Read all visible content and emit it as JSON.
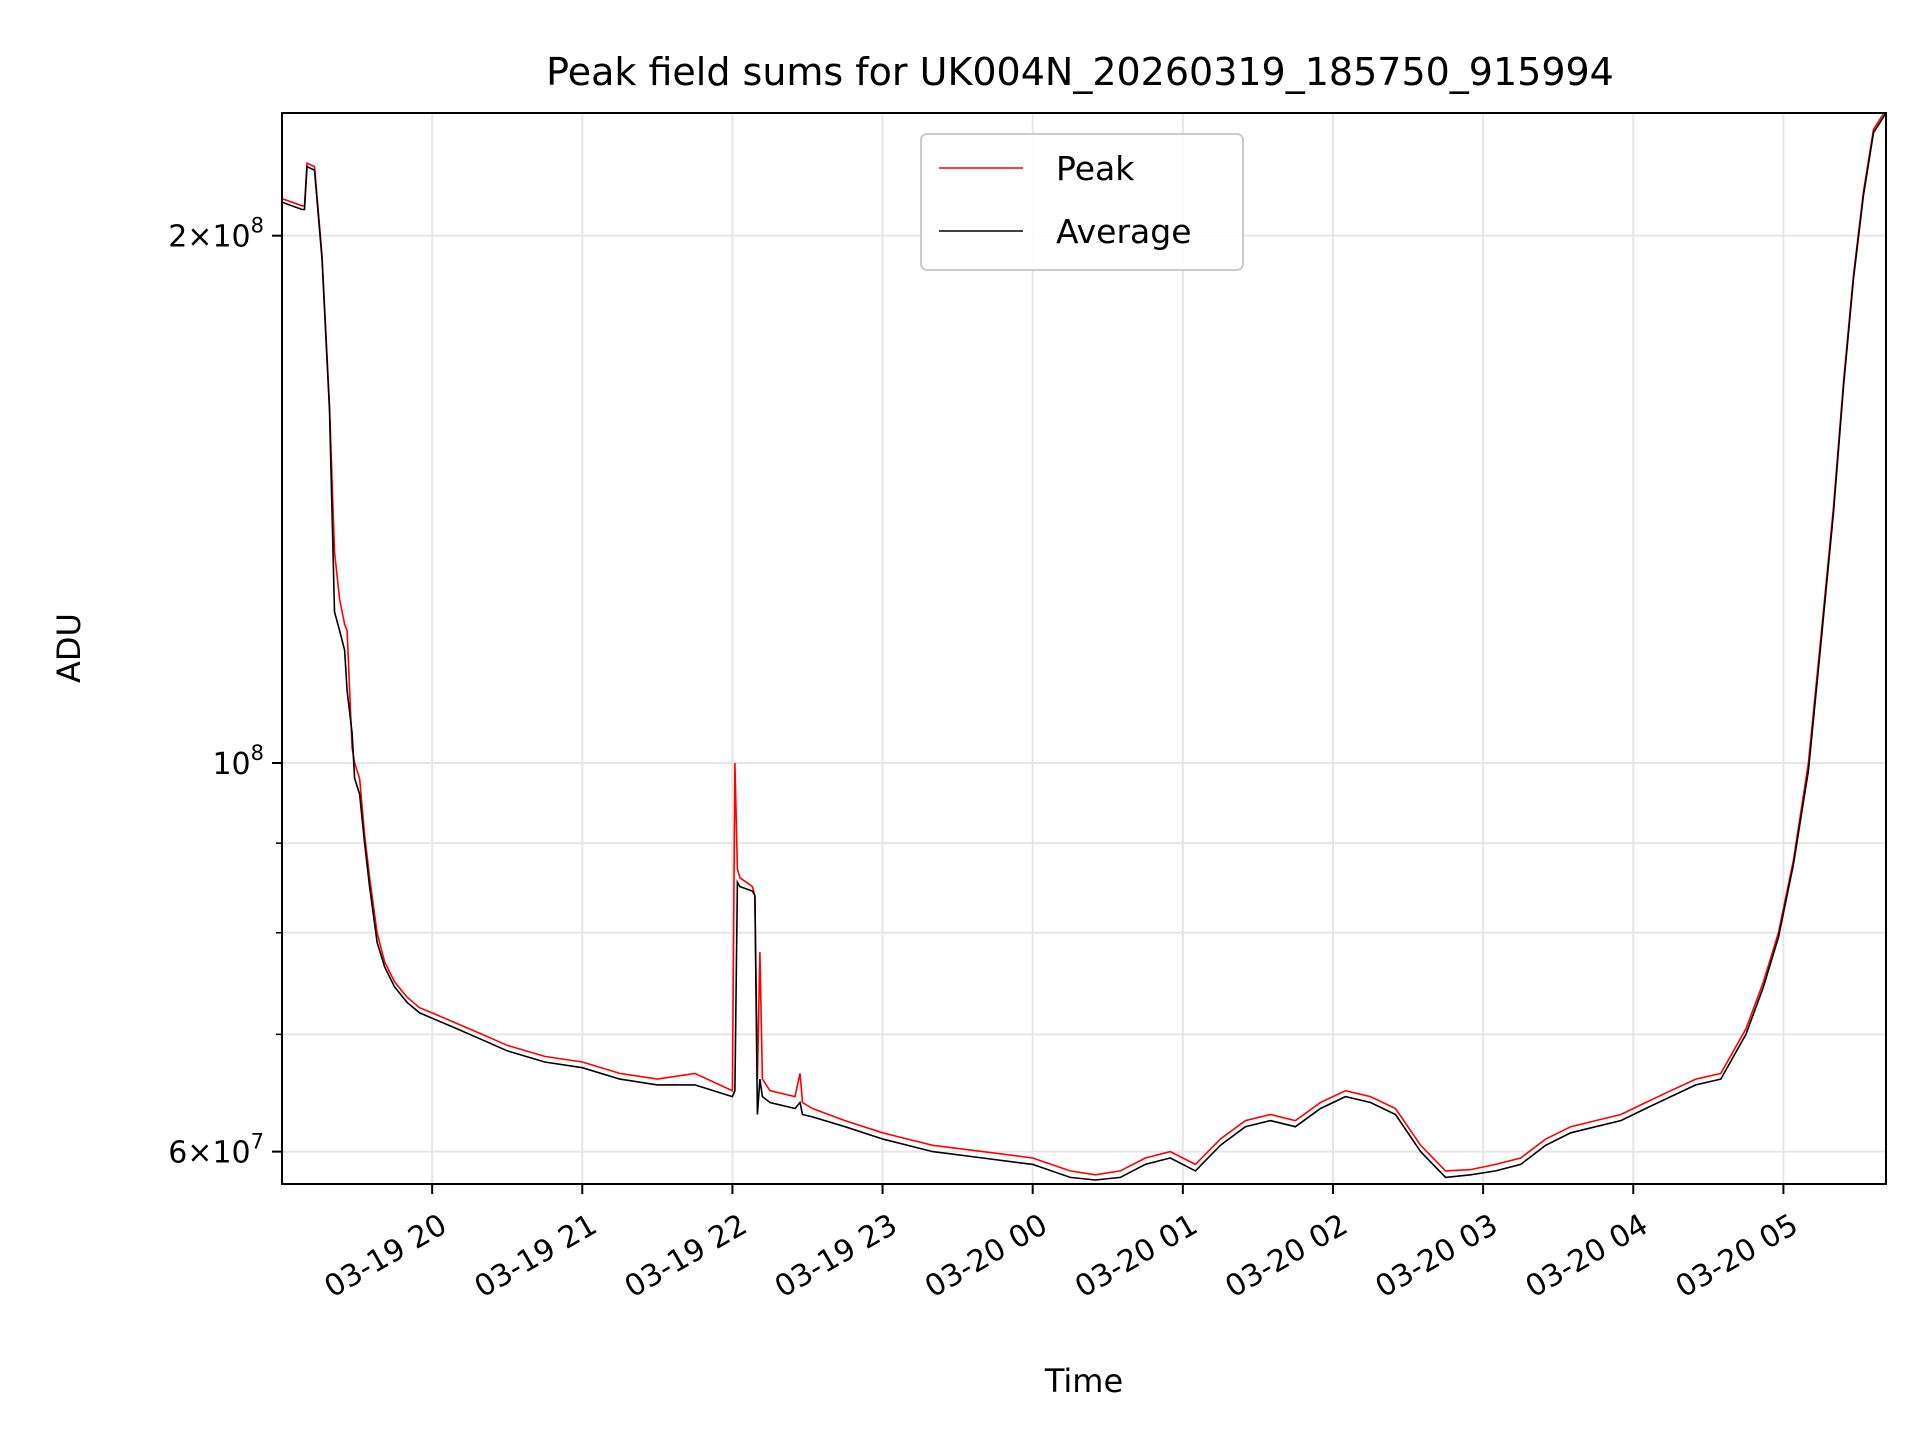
{
  "chart_data": {
    "type": "line",
    "title": "Peak field sums for UK004N_20260319_185750_915994",
    "xlabel": "Time",
    "ylabel": "ADU",
    "yscale": "log",
    "ylim": [
      57500000,
      235000000
    ],
    "xlim": [
      "2026-03-19 19:00",
      "2026-03-20 05:41"
    ],
    "grid": true,
    "legend_placement": "upper center",
    "x_ticks": [
      {
        "value": "2026-03-19 20:00",
        "label": "03-19 20"
      },
      {
        "value": "2026-03-19 21:00",
        "label": "03-19 21"
      },
      {
        "value": "2026-03-19 22:00",
        "label": "03-19 22"
      },
      {
        "value": "2026-03-19 23:00",
        "label": "03-19 23"
      },
      {
        "value": "2026-03-20 00:00",
        "label": "03-20 00"
      },
      {
        "value": "2026-03-20 01:00",
        "label": "03-20 01"
      },
      {
        "value": "2026-03-20 02:00",
        "label": "03-20 02"
      },
      {
        "value": "2026-03-20 03:00",
        "label": "03-20 03"
      },
      {
        "value": "2026-03-20 04:00",
        "label": "03-20 04"
      },
      {
        "value": "2026-03-20 05:00",
        "label": "03-20 05"
      }
    ],
    "y_ticks": [
      {
        "value": 60000000,
        "base": "6×10",
        "exp": "7"
      },
      {
        "value": 100000000,
        "base": "10",
        "exp": "8"
      },
      {
        "value": 200000000,
        "base": "2×10",
        "exp": "8"
      }
    ],
    "y_minor_ticks": [
      70000000,
      80000000,
      90000000
    ],
    "series": [
      {
        "name": "Peak",
        "color": "#ff0000",
        "x": [
          "2026-03-19 19:00",
          "2026-03-19 19:08",
          "2026-03-19 19:09",
          "2026-03-19 19:10",
          "2026-03-19 19:13",
          "2026-03-19 19:16",
          "2026-03-19 19:19",
          "2026-03-19 19:21",
          "2026-03-19 19:23",
          "2026-03-19 19:25",
          "2026-03-19 19:26",
          "2026-03-19 19:28",
          "2026-03-19 19:29",
          "2026-03-19 19:31",
          "2026-03-19 19:33",
          "2026-03-19 19:35",
          "2026-03-19 19:38",
          "2026-03-19 19:41",
          "2026-03-19 19:45",
          "2026-03-19 19:50",
          "2026-03-19 19:55",
          "2026-03-19 20:00",
          "2026-03-19 20:10",
          "2026-03-19 20:20",
          "2026-03-19 20:30",
          "2026-03-19 20:45",
          "2026-03-19 21:00",
          "2026-03-19 21:15",
          "2026-03-19 21:30",
          "2026-03-19 21:45",
          "2026-03-19 22:00",
          "2026-03-19 22:01",
          "2026-03-19 22:02",
          "2026-03-19 22:03",
          "2026-03-19 22:08",
          "2026-03-19 22:09",
          "2026-03-19 22:10",
          "2026-03-19 22:11",
          "2026-03-19 22:12",
          "2026-03-19 22:15",
          "2026-03-19 22:25",
          "2026-03-19 22:27",
          "2026-03-19 22:28",
          "2026-03-19 22:32",
          "2026-03-19 22:45",
          "2026-03-19 23:00",
          "2026-03-19 23:20",
          "2026-03-19 23:40",
          "2026-03-20 00:00",
          "2026-03-20 00:15",
          "2026-03-20 00:25",
          "2026-03-20 00:35",
          "2026-03-20 00:45",
          "2026-03-20 00:55",
          "2026-03-20 01:05",
          "2026-03-20 01:15",
          "2026-03-20 01:25",
          "2026-03-20 01:35",
          "2026-03-20 01:45",
          "2026-03-20 01:55",
          "2026-03-20 02:05",
          "2026-03-20 02:15",
          "2026-03-20 02:25",
          "2026-03-20 02:35",
          "2026-03-20 02:45",
          "2026-03-20 02:55",
          "2026-03-20 03:05",
          "2026-03-20 03:15",
          "2026-03-20 03:25",
          "2026-03-20 03:35",
          "2026-03-20 03:45",
          "2026-03-20 03:55",
          "2026-03-20 04:05",
          "2026-03-20 04:15",
          "2026-03-20 04:25",
          "2026-03-20 04:35",
          "2026-03-20 04:45",
          "2026-03-20 04:52",
          "2026-03-20 04:58",
          "2026-03-20 05:04",
          "2026-03-20 05:10",
          "2026-03-20 05:15",
          "2026-03-20 05:20",
          "2026-03-20 05:24",
          "2026-03-20 05:28",
          "2026-03-20 05:32",
          "2026-03-20 05:36",
          "2026-03-20 05:41"
        ],
        "values": [
          210000000,
          208000000,
          208000000,
          220000000,
          219000000,
          195000000,
          160000000,
          132000000,
          124000000,
          120000000,
          119000000,
          102000000,
          100000000,
          98000000,
          91000000,
          86000000,
          80000000,
          77000000,
          75000000,
          73500000,
          72500000,
          72000000,
          71000000,
          70000000,
          69000000,
          68000000,
          67500000,
          66500000,
          66000000,
          66500000,
          65000000,
          100000000,
          87000000,
          86000000,
          85000000,
          84000000,
          66000000,
          78000000,
          66000000,
          65000000,
          64500000,
          66500000,
          64000000,
          63500000,
          62500000,
          61500000,
          60500000,
          60000000,
          59500000,
          58500000,
          58200000,
          58500000,
          59500000,
          60000000,
          59000000,
          61000000,
          62500000,
          63000000,
          62500000,
          64000000,
          65000000,
          64500000,
          63500000,
          60500000,
          58500000,
          58600000,
          59000000,
          59500000,
          61000000,
          62000000,
          62500000,
          63000000,
          64000000,
          65000000,
          66000000,
          66500000,
          70500000,
          75000000,
          80000000,
          88000000,
          100000000,
          118000000,
          140000000,
          165000000,
          190000000,
          212000000,
          230000000,
          236000000
        ]
      },
      {
        "name": "Average",
        "color": "#000000",
        "x": [
          "2026-03-19 19:00",
          "2026-03-19 19:08",
          "2026-03-19 19:09",
          "2026-03-19 19:10",
          "2026-03-19 19:13",
          "2026-03-19 19:16",
          "2026-03-19 19:19",
          "2026-03-19 19:21",
          "2026-03-19 19:23",
          "2026-03-19 19:25",
          "2026-03-19 19:26",
          "2026-03-19 19:28",
          "2026-03-19 19:29",
          "2026-03-19 19:31",
          "2026-03-19 19:33",
          "2026-03-19 19:35",
          "2026-03-19 19:38",
          "2026-03-19 19:41",
          "2026-03-19 19:45",
          "2026-03-19 19:50",
          "2026-03-19 19:55",
          "2026-03-19 20:00",
          "2026-03-19 20:10",
          "2026-03-19 20:20",
          "2026-03-19 20:30",
          "2026-03-19 20:45",
          "2026-03-19 21:00",
          "2026-03-19 21:15",
          "2026-03-19 21:30",
          "2026-03-19 21:45",
          "2026-03-19 22:00",
          "2026-03-19 22:01",
          "2026-03-19 22:02",
          "2026-03-19 22:03",
          "2026-03-19 22:08",
          "2026-03-19 22:09",
          "2026-03-19 22:10",
          "2026-03-19 22:11",
          "2026-03-19 22:12",
          "2026-03-19 22:15",
          "2026-03-19 22:25",
          "2026-03-19 22:27",
          "2026-03-19 22:28",
          "2026-03-19 22:32",
          "2026-03-19 22:45",
          "2026-03-19 23:00",
          "2026-03-19 23:20",
          "2026-03-19 23:40",
          "2026-03-20 00:00",
          "2026-03-20 00:15",
          "2026-03-20 00:25",
          "2026-03-20 00:35",
          "2026-03-20 00:45",
          "2026-03-20 00:55",
          "2026-03-20 01:05",
          "2026-03-20 01:15",
          "2026-03-20 01:25",
          "2026-03-20 01:35",
          "2026-03-20 01:45",
          "2026-03-20 01:55",
          "2026-03-20 02:05",
          "2026-03-20 02:15",
          "2026-03-20 02:25",
          "2026-03-20 02:35",
          "2026-03-20 02:45",
          "2026-03-20 02:55",
          "2026-03-20 03:05",
          "2026-03-20 03:15",
          "2026-03-20 03:25",
          "2026-03-20 03:35",
          "2026-03-20 03:45",
          "2026-03-20 03:55",
          "2026-03-20 04:05",
          "2026-03-20 04:15",
          "2026-03-20 04:25",
          "2026-03-20 04:35",
          "2026-03-20 04:45",
          "2026-03-20 04:52",
          "2026-03-20 04:58",
          "2026-03-20 05:04",
          "2026-03-20 05:10",
          "2026-03-20 05:15",
          "2026-03-20 05:20",
          "2026-03-20 05:24",
          "2026-03-20 05:28",
          "2026-03-20 05:32",
          "2026-03-20 05:36",
          "2026-03-20 05:41"
        ],
        "values": [
          209000000,
          207000000,
          207000000,
          219000000,
          218000000,
          194000000,
          159000000,
          122000000,
          119000000,
          116000000,
          110000000,
          104000000,
          98000000,
          96000000,
          90000000,
          85000000,
          79000000,
          76500000,
          74500000,
          73000000,
          72000000,
          71500000,
          70500000,
          69500000,
          68500000,
          67500000,
          67000000,
          66000000,
          65500000,
          65500000,
          64500000,
          65000000,
          85500000,
          85000000,
          84500000,
          84000000,
          63000000,
          66000000,
          64500000,
          64000000,
          63500000,
          64000000,
          63000000,
          62800000,
          62000000,
          61000000,
          60000000,
          59500000,
          59000000,
          58000000,
          57800000,
          58000000,
          59000000,
          59500000,
          58500000,
          60500000,
          62000000,
          62500000,
          62000000,
          63500000,
          64500000,
          64000000,
          63000000,
          60000000,
          58000000,
          58200000,
          58500000,
          59000000,
          60500000,
          61500000,
          62000000,
          62500000,
          63500000,
          64500000,
          65500000,
          66000000,
          70000000,
          74500000,
          79500000,
          87500000,
          99000000,
          117000000,
          139000000,
          164000000,
          189000000,
          211000000,
          229000000,
          235000000
        ]
      }
    ]
  }
}
